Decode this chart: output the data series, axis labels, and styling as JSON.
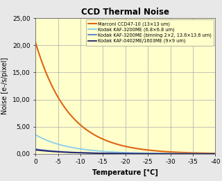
{
  "title": "CCD Thermal Noise",
  "xlabel": "Temperature [°C]",
  "ylabel": "Noise [e-/s/pixel]",
  "x_min": 0,
  "x_max": -40,
  "y_min": 0,
  "y_max": 25,
  "y_ticks": [
    0,
    5,
    10,
    15,
    20,
    25
  ],
  "x_ticks": [
    0,
    -5,
    -10,
    -15,
    -20,
    -25,
    -30,
    -35,
    -40
  ],
  "background_color": "#ffffcc",
  "outer_bg": "#e8e8e8",
  "grid_color": "#aaaaaa",
  "series": [
    {
      "label": "Marconi CCD47-10 (13×13 um)",
      "color": "#dd6611",
      "linewidth": 1.5,
      "A": 20.5,
      "k": 0.135
    },
    {
      "label": "Kodak KAF-3200ME (6.8×6.8 um)",
      "color": "#88ccee",
      "linewidth": 1.3,
      "A": 3.5,
      "k": 0.135
    },
    {
      "label": "Kodak KAF-3200ME (binning 2×2, 13.6×13.6 um)",
      "color": "#5577cc",
      "linewidth": 1.3,
      "A": 0.875,
      "k": 0.135
    },
    {
      "label": "Kodak KAF-0402ME/1603ME (9×9 um)",
      "color": "#222266",
      "linewidth": 1.3,
      "A": 0.72,
      "k": 0.135
    }
  ]
}
